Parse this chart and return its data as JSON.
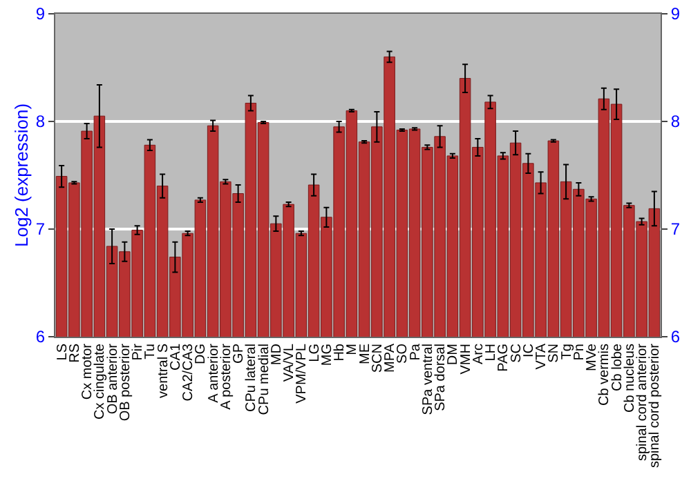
{
  "chart_data": {
    "type": "bar",
    "ylabel": "Log2 (expression)",
    "categories": [
      "LS",
      "RS",
      "Cx motor",
      "Cx cingulate",
      "OB anterior",
      "OB posterior",
      "Pir",
      "Tu",
      "ventral S",
      "CA1",
      "CA2/CA3",
      "DG",
      "A anterior",
      "A posterior",
      "GP",
      "CPu lateral",
      "CPu medial",
      "MD",
      "VA/VL",
      "VPM/VPL",
      "LG",
      "MG",
      "Hb",
      "M",
      "ME",
      "SCN",
      "MPA",
      "SO",
      "Pa",
      "SPa ventral",
      "SPa dorsal",
      "DM",
      "VMH",
      "Arc",
      "LH",
      "PAG",
      "SC",
      "IC",
      "VTA",
      "SN",
      "Tg",
      "Pn",
      "MVe",
      "Cb vermis",
      "Cb lobe",
      "Cb nucleus",
      "spinal cord anterior",
      "spinal cord posterior"
    ],
    "values": [
      7.49,
      7.43,
      7.91,
      8.05,
      6.84,
      6.79,
      6.99,
      7.78,
      7.4,
      6.74,
      6.96,
      7.27,
      7.96,
      7.44,
      7.33,
      8.17,
      7.99,
      7.05,
      7.23,
      6.96,
      7.41,
      7.11,
      7.95,
      8.1,
      7.81,
      7.95,
      8.6,
      7.92,
      7.93,
      7.76,
      7.86,
      7.68,
      8.4,
      7.76,
      8.18,
      7.68,
      7.8,
      7.61,
      7.43,
      7.82,
      7.44,
      7.37,
      7.28,
      8.21,
      8.16,
      7.22,
      7.07,
      7.19
    ],
    "errors": [
      0.1,
      0.01,
      0.07,
      0.29,
      0.16,
      0.09,
      0.04,
      0.05,
      0.11,
      0.14,
      0.02,
      0.02,
      0.05,
      0.02,
      0.08,
      0.07,
      0.01,
      0.07,
      0.02,
      0.02,
      0.1,
      0.09,
      0.05,
      0.01,
      0.01,
      0.14,
      0.05,
      0.01,
      0.01,
      0.02,
      0.1,
      0.02,
      0.13,
      0.08,
      0.06,
      0.03,
      0.11,
      0.09,
      0.1,
      0.01,
      0.16,
      0.06,
      0.02,
      0.1,
      0.14,
      0.02,
      0.03,
      0.16
    ],
    "color": "#b83232",
    "ylim": [
      6,
      9
    ],
    "yticks": [
      6,
      7,
      8,
      9
    ],
    "y2lim": [
      6,
      9
    ],
    "y2ticks": [
      6,
      7,
      8,
      9
    ],
    "grid": "y"
  }
}
